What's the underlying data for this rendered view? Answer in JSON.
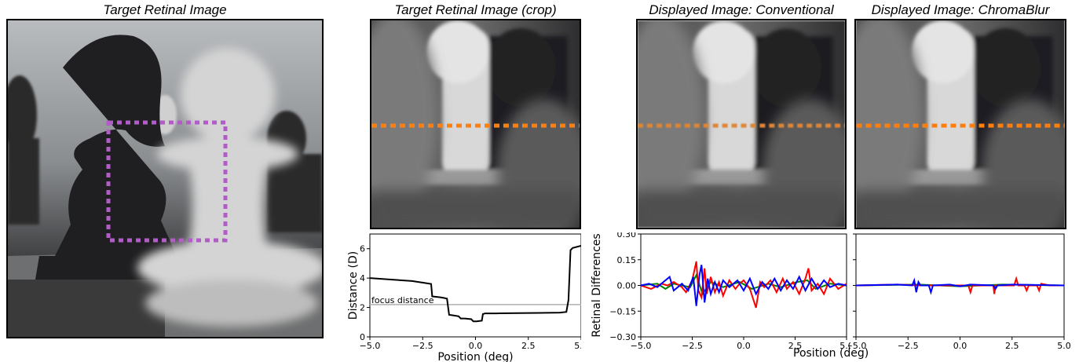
{
  "titles": {
    "left": "Target Retinal Image",
    "crop": "Target Retinal Image (crop)",
    "conventional": "Displayed Image: Conventional",
    "chromablur": "Displayed Image: ChromaBlur"
  },
  "colors": {
    "crop_box": "#b25cc8",
    "scanline": "#ff7f0e",
    "red_series": "#ff0000",
    "green_series": "#008000",
    "blue_series": "#0000ff",
    "focus_line": "#b0b0b0"
  },
  "chart_data": [
    {
      "type": "line",
      "id": "distance",
      "xlabel": "Position (deg)",
      "ylabel": "Distance (D)",
      "xlim": [
        -5.0,
        5.0
      ],
      "ylim": [
        0,
        7
      ],
      "xticks": [
        "−5.0",
        "−2.5",
        "0.0",
        "2.5",
        "5.0"
      ],
      "yticks": [
        "0",
        "2",
        "4",
        "6"
      ],
      "annotation": "focus distance",
      "focus_distance": 2.2,
      "series": [
        {
          "x": [
            -5.0,
            -4.0,
            -3.0,
            -2.3,
            -2.1,
            -2.05,
            -1.7,
            -1.5,
            -1.35,
            -1.25,
            -1.0,
            -0.8,
            -0.7,
            -0.5,
            -0.2,
            -0.1,
            0.05,
            0.3,
            0.35,
            0.45,
            1.0,
            2.0,
            3.0,
            4.0,
            4.3,
            4.4,
            4.5,
            4.6,
            5.0
          ],
          "y": [
            4.0,
            3.9,
            3.8,
            3.65,
            3.6,
            2.75,
            2.7,
            2.65,
            2.6,
            1.5,
            1.45,
            1.4,
            1.25,
            1.25,
            1.2,
            1.05,
            1.05,
            1.1,
            1.55,
            1.6,
            1.6,
            1.62,
            1.63,
            1.65,
            1.7,
            2.5,
            5.9,
            6.05,
            6.2
          ]
        }
      ]
    },
    {
      "type": "line",
      "id": "retinal-conventional",
      "xlabel": "Position (deg)",
      "ylabel": "Retinal Differences",
      "xlim": [
        -5.0,
        5.0
      ],
      "ylim": [
        -0.3,
        0.3
      ],
      "xticks": [
        "−5.0",
        "−2.5",
        "0.0",
        "2.5",
        "5.0"
      ],
      "yticks": [
        "−0.30",
        "−0.15",
        "0.00",
        "0.15",
        "0.30"
      ],
      "series": [
        {
          "color": "green",
          "x": [
            -5.0,
            -4.2,
            -3.8,
            -3.4,
            -2.6,
            -2.3,
            -2.0,
            -1.6,
            -1.0,
            -0.2,
            0.4,
            1.2,
            1.8,
            2.6,
            3.1,
            3.5,
            4.2,
            5.0
          ],
          "y": [
            0.0,
            0.01,
            -0.02,
            0.01,
            -0.01,
            0.06,
            -0.05,
            0.02,
            -0.01,
            0.02,
            -0.02,
            0.01,
            -0.01,
            0.02,
            0.03,
            -0.02,
            0.01,
            0.0
          ]
        },
        {
          "color": "red",
          "x": [
            -5.0,
            -4.5,
            -4.0,
            -3.7,
            -3.4,
            -3.0,
            -2.8,
            -2.5,
            -2.3,
            -2.2,
            -2.05,
            -1.9,
            -1.8,
            -1.6,
            -1.4,
            -1.2,
            -1.0,
            -0.7,
            -0.4,
            -0.2,
            0.0,
            0.3,
            0.6,
            0.8,
            1.0,
            1.3,
            1.6,
            1.9,
            2.1,
            2.4,
            2.7,
            3.0,
            3.15,
            3.3,
            3.6,
            3.9,
            4.2,
            4.6,
            5.0
          ],
          "y": [
            0.0,
            -0.02,
            0.01,
            0.0,
            0.02,
            -0.01,
            -0.04,
            0.03,
            0.14,
            -0.03,
            -0.07,
            0.1,
            -0.05,
            0.05,
            -0.04,
            0.02,
            -0.06,
            0.03,
            -0.02,
            0.01,
            0.03,
            -0.02,
            -0.13,
            0.02,
            -0.01,
            0.03,
            -0.04,
            0.04,
            -0.02,
            0.02,
            -0.05,
            0.04,
            0.1,
            -0.03,
            0.01,
            -0.05,
            0.04,
            -0.02,
            0.01
          ]
        },
        {
          "color": "blue",
          "x": [
            -5.0,
            -4.6,
            -4.2,
            -3.9,
            -3.6,
            -3.4,
            -3.0,
            -2.7,
            -2.45,
            -2.3,
            -2.15,
            -2.05,
            -1.9,
            -1.75,
            -1.6,
            -1.4,
            -1.2,
            -1.0,
            -0.7,
            -0.3,
            0.0,
            0.3,
            0.6,
            0.9,
            1.2,
            1.5,
            1.8,
            2.1,
            2.4,
            2.7,
            3.0,
            3.3,
            3.6,
            3.9,
            4.2,
            4.6,
            5.0
          ],
          "y": [
            0.0,
            0.01,
            -0.01,
            0.02,
            0.05,
            -0.03,
            0.01,
            -0.03,
            0.05,
            -0.12,
            0.06,
            0.12,
            -0.1,
            0.04,
            -0.05,
            0.02,
            -0.04,
            0.03,
            -0.01,
            0.03,
            -0.03,
            0.04,
            -0.05,
            0.02,
            -0.02,
            0.04,
            -0.03,
            0.03,
            -0.02,
            0.05,
            -0.03,
            0.04,
            -0.02,
            0.03,
            -0.01,
            0.01,
            0.0
          ]
        }
      ]
    },
    {
      "type": "line",
      "id": "retinal-chromablur",
      "xlabel": "Position (deg)",
      "ylabel": "",
      "xlim": [
        -5.0,
        5.0
      ],
      "ylim": [
        -0.3,
        0.3
      ],
      "xticks": [
        "−5.0",
        "−2.5",
        "0.0",
        "2.5",
        "5.0"
      ],
      "yticks": [],
      "series": [
        {
          "color": "green",
          "x": [
            -5.0,
            -2.0,
            0.0,
            2.0,
            5.0
          ],
          "y": [
            0.0,
            0.005,
            -0.005,
            0.005,
            0.0
          ]
        },
        {
          "color": "red",
          "x": [
            -5.0,
            -3.0,
            -2.0,
            0.4,
            0.5,
            0.6,
            1.6,
            1.65,
            1.7,
            2.6,
            2.7,
            2.8,
            3.1,
            3.2,
            3.3,
            3.7,
            3.8,
            3.9,
            4.3,
            5.0
          ],
          "y": [
            0.0,
            0.005,
            0.0,
            0.0,
            -0.04,
            0.0,
            0.0,
            -0.05,
            0.0,
            0.0,
            0.04,
            0.0,
            0.0,
            -0.03,
            0.0,
            0.0,
            -0.03,
            0.01,
            0.0,
            0.0
          ]
        },
        {
          "color": "blue",
          "x": [
            -5.0,
            -3.0,
            -2.3,
            -2.2,
            -2.1,
            -2.0,
            -1.9,
            -1.5,
            -1.4,
            -1.3,
            -0.5,
            0.0,
            0.5,
            1.6,
            1.7,
            1.8,
            2.5,
            5.0
          ],
          "y": [
            0.0,
            0.005,
            0.0,
            0.03,
            -0.04,
            0.02,
            0.0,
            0.0,
            -0.04,
            0.0,
            0.005,
            -0.005,
            0.005,
            0.0,
            -0.02,
            0.0,
            0.005,
            0.0
          ]
        }
      ]
    }
  ]
}
